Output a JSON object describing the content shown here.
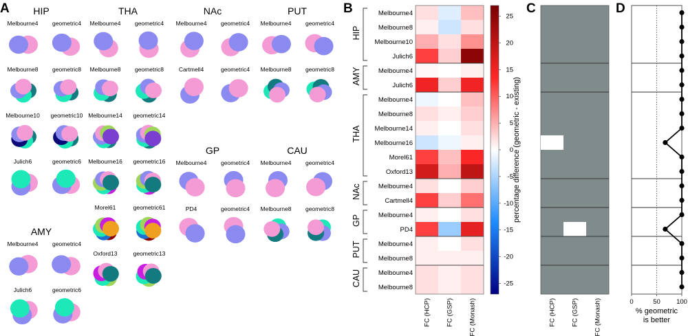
{
  "panels": {
    "A": {
      "label": "A",
      "regions": [
        {
          "name": "HIP",
          "rows": [
            {
              "existing": "Melbourne4",
              "geometric": "geometric4",
              "colors": [
                "#f49ad4",
                "#8a8af0"
              ]
            },
            {
              "existing": "Melbourne8",
              "geometric": "geometric8",
              "colors": [
                "#137a80",
                "#1de8b8",
                "#8a8af0",
                "#f49ad4"
              ]
            },
            {
              "existing": "Melbourne10",
              "geometric": "geometric10",
              "colors": [
                "#137a80",
                "#1de8b8",
                "#0b0b78",
                "#8a8af0",
                "#f49ad4"
              ]
            },
            {
              "existing": "Julich6",
              "geometric": "geometric6",
              "colors": [
                "#f49ad4",
                "#8a8af0",
                "#1de8b8"
              ]
            }
          ]
        },
        {
          "name": "THA",
          "rows": [
            {
              "existing": "Melbourne4",
              "geometric": "geometric4",
              "colors": [
                "#f49ad4",
                "#8a8af0"
              ]
            },
            {
              "existing": "Melbourne8",
              "geometric": "geometric8",
              "colors": [
                "#137a80",
                "#1de8b8",
                "#8a8af0",
                "#f49ad4"
              ]
            },
            {
              "existing": "Melbourne14",
              "geometric": "geometric14",
              "colors": [
                "#137a80",
                "#1de8b8",
                "#8a8af0",
                "#f49ad4",
                "#9fd65a",
                "#7a3fd0"
              ]
            },
            {
              "existing": "Melbourne16",
              "geometric": "geometric16",
              "colors": [
                "#c81ee0",
                "#1de8b8",
                "#9fd65a",
                "#8a8af0",
                "#f49ad4",
                "#137a80"
              ]
            },
            {
              "existing": "Morel61",
              "geometric": "geometric61",
              "colors": [
                "#8b0000",
                "#1d6fd0",
                "#1de8b8",
                "#9fd65a",
                "#c81ee0",
                "#f0a020"
              ]
            },
            {
              "existing": "Oxford13",
              "geometric": "geometric13",
              "colors": [
                "#9fd65a",
                "#1de8b8",
                "#c81ee0",
                "#f49ad4",
                "#137a80"
              ]
            }
          ]
        },
        {
          "name": "NAc",
          "rows": [
            {
              "existing": "Melbourne4",
              "geometric": "geometric4",
              "colors": [
                "#f49ad4",
                "#8a8af0"
              ]
            },
            {
              "existing": "Cartmell4",
              "geometric": "geometric4",
              "colors": [
                "#8a8af0",
                "#f49ad4"
              ]
            }
          ]
        },
        {
          "name": "PUT",
          "rows": [
            {
              "existing": "Melbourne4",
              "geometric": "geometric4",
              "colors": [
                "#f49ad4",
                "#8a8af0"
              ]
            },
            {
              "existing": "Melbourne8",
              "geometric": "geometric8",
              "colors": [
                "#1de8b8",
                "#137a80",
                "#8a8af0",
                "#f49ad4"
              ]
            }
          ]
        },
        {
          "name": "GP",
          "rows": [
            {
              "existing": "Melbourne4",
              "geometric": "geometric4",
              "colors": [
                "#8a8af0",
                "#f49ad4"
              ]
            },
            {
              "existing": "PD4",
              "geometric": "geometric4",
              "colors": [
                "#f49ad4",
                "#8a8af0"
              ]
            }
          ]
        },
        {
          "name": "CAU",
          "rows": [
            {
              "existing": "Melbourne4",
              "geometric": "geometric4",
              "colors": [
                "#8a8af0",
                "#f49ad4"
              ]
            },
            {
              "existing": "Melbourne8",
              "geometric": "geometric8",
              "colors": [
                "#1de8b8",
                "#8a8af0",
                "#137a80",
                "#f49ad4"
              ]
            }
          ]
        },
        {
          "name": "AMY",
          "rows": [
            {
              "existing": "Melbourne4",
              "geometric": "geometric4",
              "colors": [
                "#f49ad4",
                "#8a8af0"
              ]
            },
            {
              "existing": "Julich6",
              "geometric": "geometric6",
              "colors": [
                "#f49ad4",
                "#8a8af0",
                "#1de8b8"
              ]
            }
          ]
        }
      ]
    },
    "B": {
      "label": "B",
      "colorbar_label": "percentage difference (geometric - existing)"
    },
    "C": {
      "label": "C"
    },
    "D": {
      "label": "D",
      "xlabel": "% geometric\nis better",
      "x_ticks": [
        0,
        50,
        100
      ],
      "reference_line": 50
    }
  },
  "chart_data": [
    {
      "type": "heatmap",
      "panel": "B",
      "title": "",
      "groups": [
        {
          "name": "HIP",
          "rows": [
            "Melbourne4",
            "Melbourne8",
            "Melbourne10",
            "Julich6"
          ]
        },
        {
          "name": "AMY",
          "rows": [
            "Melbourne4",
            "Julich6"
          ]
        },
        {
          "name": "THA",
          "rows": [
            "Melbourne4",
            "Melbourne8",
            "Melbourne14",
            "Melbourne16",
            "Morel61",
            "Oxford13"
          ]
        },
        {
          "name": "NAc",
          "rows": [
            "Melbourne4",
            "Cartmell4"
          ]
        },
        {
          "name": "GP",
          "rows": [
            "Melbourne4",
            "PD4"
          ]
        },
        {
          "name": "PUT",
          "rows": [
            "Melbourne4",
            "Melbourne8"
          ]
        },
        {
          "name": "CAU",
          "rows": [
            "Melbourne4",
            "Melbourne8"
          ]
        }
      ],
      "columns": [
        "FC (HCP)",
        "FC (GSP)",
        "FC (Monash)"
      ],
      "values": [
        [
          2,
          -2,
          4
        ],
        [
          1,
          -3,
          2
        ],
        [
          5,
          2,
          7
        ],
        [
          12,
          3,
          25
        ],
        [
          0.5,
          0,
          1
        ],
        [
          15,
          3,
          15
        ],
        [
          -1,
          0,
          4
        ],
        [
          2,
          1,
          3
        ],
        [
          1,
          0,
          2
        ],
        [
          -3,
          -1,
          1
        ],
        [
          12,
          4,
          14
        ],
        [
          18,
          5,
          20
        ],
        [
          2,
          0,
          3
        ],
        [
          12,
          3,
          9
        ],
        [
          1,
          0,
          2
        ],
        [
          12,
          -6,
          16
        ],
        [
          1,
          0,
          2
        ],
        [
          1,
          1,
          1
        ],
        [
          2,
          1,
          2
        ],
        [
          2,
          1,
          2
        ]
      ],
      "colorbar": {
        "min": -27,
        "max": 27,
        "ticks": [
          25,
          20,
          15,
          10,
          5,
          0,
          -5,
          -10,
          -15,
          -20,
          -25
        ]
      }
    },
    {
      "type": "heatmap",
      "panel": "C",
      "title": "",
      "columns": [
        "FC (HCP)",
        "FC (GSP)",
        "FC (Monash)"
      ],
      "description_rows": "same 20 parcellation rows as panel B",
      "significant_color": "#7f8c8b",
      "nonsignificant_color": "#ffffff",
      "nonsignificant_cells": [
        [
          9,
          0
        ],
        [
          15,
          1
        ]
      ]
    },
    {
      "type": "line",
      "panel": "D",
      "title": "",
      "xlabel": "% geometric is better",
      "xlim": [
        0,
        100
      ],
      "values": [
        100,
        100,
        100,
        100,
        100,
        100,
        100,
        100,
        100,
        67,
        100,
        100,
        100,
        100,
        100,
        67,
        100,
        100,
        100,
        100
      ]
    }
  ]
}
